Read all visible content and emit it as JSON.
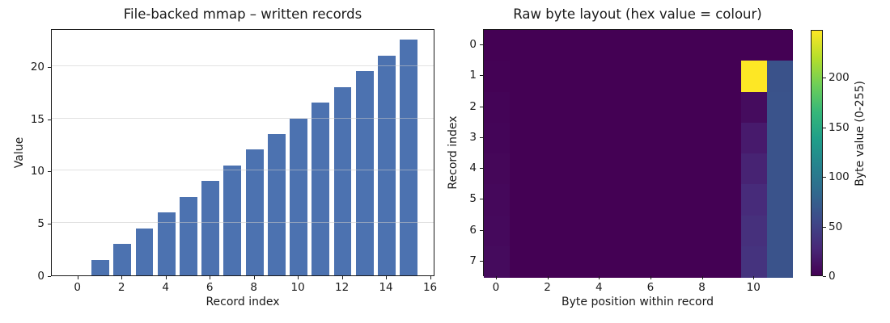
{
  "figure": {
    "background": "#ffffff"
  },
  "chart_data": [
    {
      "type": "bar",
      "title": "File-backed mmap – written records",
      "xlabel": "Record index",
      "ylabel": "Value",
      "categories": [
        0,
        1,
        2,
        3,
        4,
        5,
        6,
        7,
        8,
        9,
        10,
        11,
        12,
        13,
        14,
        15
      ],
      "values": [
        0,
        1.5,
        3,
        4.5,
        6,
        7.5,
        9,
        10.5,
        12,
        13.5,
        15,
        16.5,
        18,
        19.5,
        21,
        22.5
      ],
      "bar_color": "#4c72b0",
      "grid": "y",
      "grid_color": "rgba(200,200,200,0.55)",
      "x_ticks": [
        0,
        2,
        4,
        6,
        8,
        10,
        12,
        14,
        16
      ],
      "y_ticks": [
        0,
        5,
        10,
        15,
        20
      ],
      "xlim": [
        -1.2,
        16.2
      ],
      "ylim": [
        0,
        23.6
      ],
      "bar_width": 0.8
    },
    {
      "type": "heatmap",
      "title": "Raw byte layout (hex value = colour)",
      "xlabel": "Byte position within record",
      "ylabel": "Record index",
      "x_ticks": [
        0,
        2,
        4,
        6,
        8,
        10
      ],
      "y_ticks": [
        0,
        1,
        2,
        3,
        4,
        5,
        6,
        7
      ],
      "n_cols": 12,
      "n_rows": 8,
      "vmin": 0,
      "vmax": 248,
      "colormap": "viridis",
      "values": [
        [
          0,
          0,
          0,
          0,
          0,
          0,
          0,
          0,
          0,
          0,
          0,
          0
        ],
        [
          1,
          0,
          0,
          0,
          0,
          0,
          0,
          0,
          0,
          0,
          248,
          63
        ],
        [
          2,
          0,
          0,
          0,
          0,
          0,
          0,
          0,
          0,
          0,
          8,
          64
        ],
        [
          3,
          0,
          0,
          0,
          0,
          0,
          0,
          0,
          0,
          0,
          18,
          64
        ],
        [
          4,
          0,
          0,
          0,
          0,
          0,
          0,
          0,
          0,
          0,
          24,
          64
        ],
        [
          5,
          0,
          0,
          0,
          0,
          0,
          0,
          0,
          0,
          0,
          30,
          64
        ],
        [
          6,
          0,
          0,
          0,
          0,
          0,
          0,
          0,
          0,
          0,
          34,
          64
        ],
        [
          7,
          0,
          0,
          0,
          0,
          0,
          0,
          0,
          0,
          0,
          37,
          64
        ]
      ],
      "colorbar": {
        "label": "Byte value (0-255)",
        "ticks": [
          0,
          50,
          100,
          150,
          200
        ],
        "viridis_stops": [
          "#440154",
          "#482878",
          "#3e4989",
          "#31688e",
          "#26828e",
          "#1f9e89",
          "#35b779",
          "#6ece58",
          "#b5de2b",
          "#fde725"
        ]
      }
    }
  ]
}
